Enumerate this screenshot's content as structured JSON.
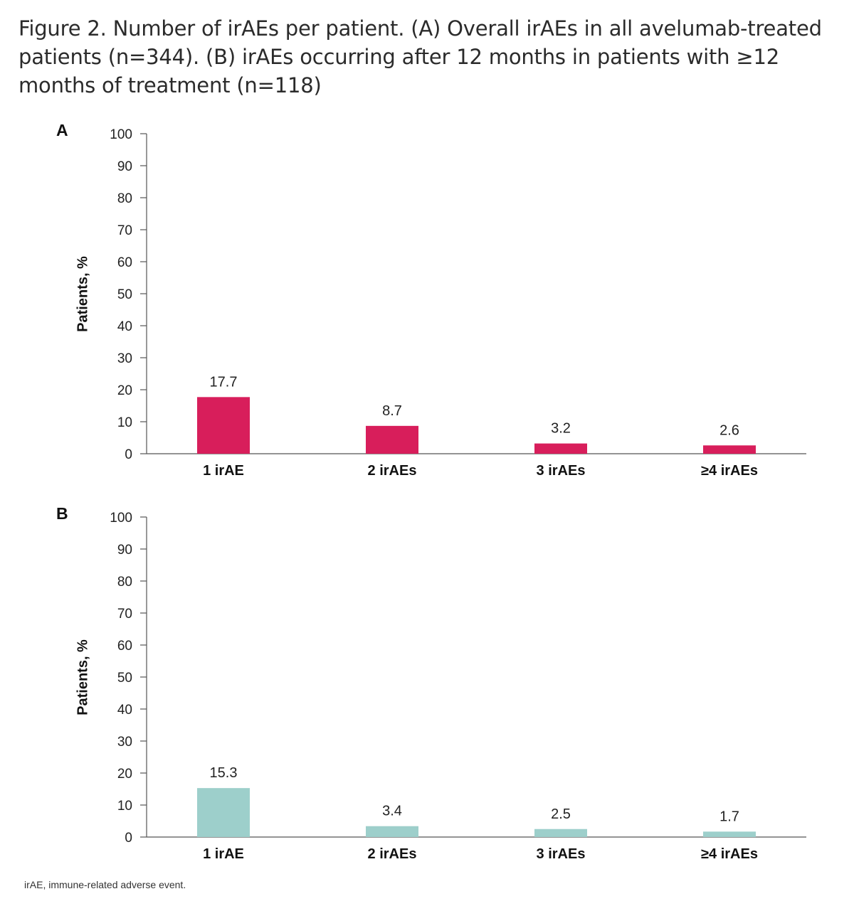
{
  "figure": {
    "title": "Figure 2. Number of irAEs per patient. (A) Overall irAEs in all avelumab-treated patients (n=344). (B) irAEs occurring after 12 months in patients with ≥12 months of treatment (n=118)",
    "footnote": "irAE, immune-related adverse event."
  },
  "chart_data": [
    {
      "type": "bar",
      "panel": "A",
      "categories": [
        "1 irAE",
        "2 irAEs",
        "3 irAEs",
        "≥4 irAEs"
      ],
      "values": [
        17.7,
        8.7,
        3.2,
        2.6
      ],
      "value_labels": [
        "17.7",
        "8.7",
        "3.2",
        "2.6"
      ],
      "ylabel": "Patients, %",
      "ylim": [
        0,
        100
      ],
      "yticks": [
        0,
        10,
        20,
        30,
        40,
        50,
        60,
        70,
        80,
        90,
        100
      ],
      "color": "#d81e5b",
      "grid": false
    },
    {
      "type": "bar",
      "panel": "B",
      "categories": [
        "1 irAE",
        "2 irAEs",
        "3 irAEs",
        "≥4 irAEs"
      ],
      "values": [
        15.3,
        3.4,
        2.5,
        1.7
      ],
      "value_labels": [
        "15.3",
        "3.4",
        "2.5",
        "1.7"
      ],
      "ylabel": "Patients, %",
      "ylim": [
        0,
        100
      ],
      "yticks": [
        0,
        10,
        20,
        30,
        40,
        50,
        60,
        70,
        80,
        90,
        100
      ],
      "color": "#9dcfcb",
      "grid": false
    }
  ]
}
